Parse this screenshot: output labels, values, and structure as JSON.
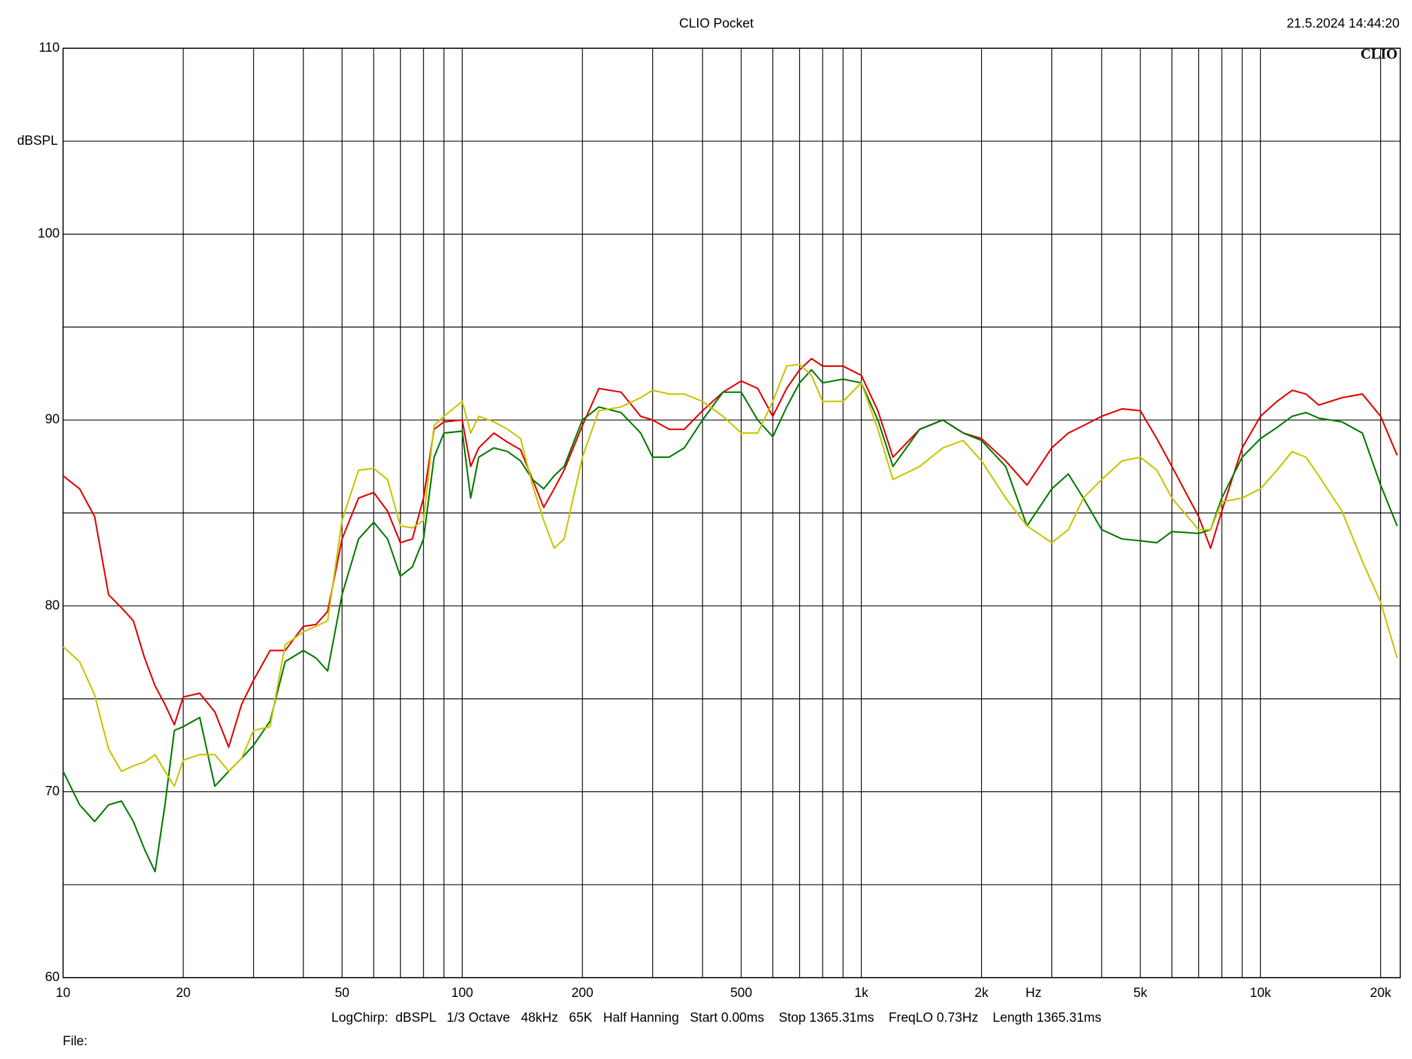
{
  "chart_data": {
    "type": "line",
    "title": "CLIO Pocket",
    "timestamp": "21.5.2024 14:44:20",
    "logo": "CLIO",
    "y_label": "dBSPL",
    "x_label": "Hz",
    "settings_line": "LogChirp:  dBSPL   1/3 Octave   48kHz   65K   Half Hanning   Start 0.00ms    Stop 1365.31ms    FreqLO 0.73Hz    Length 1365.31ms",
    "file_label": "File:",
    "log_x": true,
    "grid": true,
    "xlim": [
      10,
      22400
    ],
    "ylim": [
      60,
      110
    ],
    "xticks": [
      10,
      20,
      50,
      100,
      200,
      500,
      {
        "value": 1000,
        "label": "1k"
      },
      {
        "value": 2000,
        "label": "2k"
      },
      {
        "value": 5000,
        "label": "5k"
      },
      {
        "value": 10000,
        "label": "10k"
      },
      {
        "value": 20000,
        "label": "20k"
      }
    ],
    "xgrid_minor": [
      30,
      40,
      60,
      70,
      80,
      90,
      300,
      400,
      600,
      700,
      800,
      900,
      3000,
      4000,
      6000,
      7000,
      8000,
      9000
    ],
    "yticks": [
      60,
      70,
      80,
      90,
      100,
      110
    ],
    "ygrid_minor": [
      65,
      75,
      85,
      95,
      105
    ],
    "x": [
      10,
      11,
      12,
      13,
      14,
      15,
      16,
      17,
      18,
      19,
      20,
      22,
      24,
      26,
      28,
      30,
      33,
      36,
      40,
      43,
      46,
      50,
      55,
      60,
      65,
      70,
      75,
      80,
      85,
      90,
      100,
      105,
      110,
      120,
      130,
      140,
      150,
      160,
      170,
      180,
      200,
      220,
      250,
      280,
      300,
      330,
      360,
      400,
      450,
      500,
      550,
      600,
      650,
      700,
      750,
      800,
      900,
      1000,
      1100,
      1200,
      1400,
      1600,
      1800,
      2000,
      2300,
      2600,
      3000,
      3300,
      3600,
      4000,
      4500,
      5000,
      5500,
      6000,
      7000,
      7500,
      8000,
      9000,
      10000,
      11000,
      12000,
      13000,
      14000,
      16000,
      18000,
      20000,
      22000
    ],
    "series": [
      {
        "color": "#e00000",
        "values": [
          87.0,
          86.3,
          84.8,
          80.6,
          79.9,
          79.2,
          77.2,
          75.7,
          74.7,
          73.6,
          75.1,
          75.3,
          74.3,
          72.4,
          74.7,
          76.0,
          77.6,
          77.6,
          78.9,
          79.0,
          79.7,
          83.6,
          85.8,
          86.1,
          85.1,
          83.4,
          83.6,
          85.8,
          89.5,
          89.9,
          90.0,
          87.5,
          88.5,
          89.3,
          88.8,
          88.4,
          86.8,
          85.3,
          86.3,
          87.3,
          89.7,
          91.7,
          91.5,
          90.2,
          90.0,
          89.5,
          89.5,
          90.5,
          91.5,
          92.1,
          91.7,
          90.2,
          91.7,
          92.7,
          93.3,
          92.9,
          92.9,
          92.4,
          90.5,
          88.0,
          89.5,
          90.0,
          89.3,
          89.0,
          87.8,
          86.5,
          88.5,
          89.3,
          89.7,
          90.2,
          90.6,
          90.5,
          89.0,
          87.5,
          84.8,
          83.1,
          85.1,
          88.5,
          90.2,
          91.0,
          91.6,
          91.4,
          90.8,
          91.2,
          91.4,
          90.2,
          88.1
        ]
      },
      {
        "color": "#007a00",
        "values": [
          71.1,
          69.3,
          68.4,
          69.3,
          69.5,
          68.4,
          66.9,
          65.7,
          69.3,
          73.3,
          73.5,
          74.0,
          70.3,
          71.1,
          71.8,
          72.5,
          73.8,
          77.0,
          77.6,
          77.2,
          76.5,
          80.6,
          83.6,
          84.5,
          83.6,
          81.6,
          82.1,
          83.6,
          88.0,
          89.3,
          89.4,
          85.8,
          88.0,
          88.5,
          88.3,
          87.8,
          86.8,
          86.3,
          87.0,
          87.5,
          90.0,
          90.7,
          90.4,
          89.3,
          88.0,
          88.0,
          88.5,
          90.0,
          91.5,
          91.5,
          90.0,
          89.1,
          90.7,
          92.0,
          92.7,
          92.0,
          92.2,
          92.0,
          90.0,
          87.5,
          89.5,
          90.0,
          89.3,
          88.9,
          87.5,
          84.3,
          86.3,
          87.1,
          85.8,
          84.1,
          83.6,
          83.5,
          83.4,
          84.0,
          83.9,
          84.1,
          85.8,
          88.0,
          89.0,
          89.6,
          90.2,
          90.4,
          90.1,
          89.9,
          89.3,
          86.5,
          84.3
        ]
      },
      {
        "color": "#c8c400",
        "values": [
          77.8,
          77.0,
          75.2,
          72.3,
          71.1,
          71.4,
          71.6,
          72.0,
          71.1,
          70.3,
          71.7,
          72.0,
          72.0,
          71.1,
          71.8,
          73.3,
          73.5,
          77.9,
          78.6,
          78.9,
          79.2,
          84.6,
          87.3,
          87.4,
          86.8,
          84.3,
          84.2,
          84.6,
          89.7,
          90.2,
          91.0,
          89.3,
          90.2,
          89.9,
          89.5,
          89.0,
          86.5,
          84.6,
          83.1,
          83.6,
          88.0,
          90.5,
          90.7,
          91.2,
          91.6,
          91.4,
          91.4,
          91.0,
          90.2,
          89.3,
          89.3,
          91.0,
          92.9,
          93.0,
          92.4,
          91.0,
          91.0,
          92.0,
          89.5,
          86.8,
          87.5,
          88.5,
          88.9,
          87.8,
          85.8,
          84.3,
          83.4,
          84.1,
          85.8,
          86.8,
          87.8,
          88.0,
          87.3,
          85.8,
          84.1,
          84.1,
          85.6,
          85.8,
          86.3,
          87.3,
          88.3,
          88.0,
          87.0,
          85.1,
          82.4,
          80.2,
          77.2
        ]
      }
    ]
  }
}
